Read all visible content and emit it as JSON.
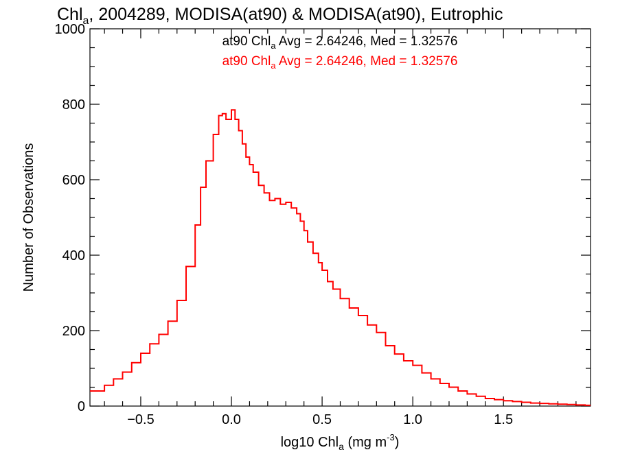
{
  "chart_data": {
    "type": "line",
    "title": {
      "pre": "Chl",
      "sub": "a",
      "post": ", 2004289, MODISA(at90) & MODISA(at90), Eutrophic"
    },
    "xlabel": {
      "pre": "log10 Chl",
      "sub": "a",
      "post": " (mg m",
      "sup": "-3",
      "end": ")"
    },
    "ylabel": "Number of Observations",
    "xlim": [
      -0.78,
      1.98
    ],
    "ylim": [
      0,
      1000
    ],
    "x_ticks": [
      -0.5,
      0.0,
      0.5,
      1.0,
      1.5
    ],
    "x_tick_labels": [
      "−0.5",
      "0.0",
      "0.5",
      "1.0",
      "1.5"
    ],
    "y_ticks": [
      0,
      200,
      400,
      600,
      800,
      1000
    ],
    "y_tick_labels": [
      "0",
      "200",
      "400",
      "600",
      "800",
      "1000"
    ],
    "grid": false,
    "legend": "none",
    "annotations": [
      {
        "pre": "at90 Chl",
        "sub": "a",
        "post": " Avg = 2.64246, Med = 1.32576",
        "color": "#000000"
      },
      {
        "pre": "at90 Chl",
        "sub": "a",
        "post": " Avg = 2.64246, Med = 1.32576",
        "color": "#ff0000"
      }
    ],
    "series": [
      {
        "color": "#ff0000",
        "style": "step",
        "points": [
          [
            -0.78,
            40
          ],
          [
            -0.7,
            55
          ],
          [
            -0.65,
            72
          ],
          [
            -0.6,
            90
          ],
          [
            -0.55,
            115
          ],
          [
            -0.5,
            140
          ],
          [
            -0.45,
            165
          ],
          [
            -0.4,
            190
          ],
          [
            -0.35,
            225
          ],
          [
            -0.3,
            280
          ],
          [
            -0.25,
            370
          ],
          [
            -0.2,
            480
          ],
          [
            -0.17,
            580
          ],
          [
            -0.14,
            650
          ],
          [
            -0.1,
            720
          ],
          [
            -0.07,
            770
          ],
          [
            -0.05,
            775
          ],
          [
            -0.03,
            760
          ],
          [
            0.0,
            785
          ],
          [
            0.02,
            760
          ],
          [
            0.04,
            730
          ],
          [
            0.06,
            695
          ],
          [
            0.08,
            660
          ],
          [
            0.1,
            640
          ],
          [
            0.12,
            620
          ],
          [
            0.15,
            585
          ],
          [
            0.18,
            565
          ],
          [
            0.21,
            545
          ],
          [
            0.24,
            550
          ],
          [
            0.27,
            535
          ],
          [
            0.3,
            540
          ],
          [
            0.33,
            525
          ],
          [
            0.36,
            510
          ],
          [
            0.38,
            490
          ],
          [
            0.4,
            465
          ],
          [
            0.42,
            435
          ],
          [
            0.45,
            405
          ],
          [
            0.48,
            380
          ],
          [
            0.5,
            360
          ],
          [
            0.53,
            330
          ],
          [
            0.56,
            310
          ],
          [
            0.6,
            285
          ],
          [
            0.65,
            260
          ],
          [
            0.7,
            240
          ],
          [
            0.75,
            215
          ],
          [
            0.8,
            195
          ],
          [
            0.85,
            160
          ],
          [
            0.9,
            138
          ],
          [
            0.95,
            120
          ],
          [
            1.0,
            108
          ],
          [
            1.05,
            88
          ],
          [
            1.1,
            72
          ],
          [
            1.15,
            60
          ],
          [
            1.2,
            50
          ],
          [
            1.25,
            40
          ],
          [
            1.3,
            32
          ],
          [
            1.35,
            26
          ],
          [
            1.4,
            20
          ],
          [
            1.45,
            17
          ],
          [
            1.5,
            14
          ],
          [
            1.55,
            12
          ],
          [
            1.6,
            10
          ],
          [
            1.65,
            8
          ],
          [
            1.7,
            7
          ],
          [
            1.75,
            6
          ],
          [
            1.8,
            5
          ],
          [
            1.85,
            4
          ],
          [
            1.9,
            3
          ],
          [
            1.95,
            2
          ],
          [
            1.98,
            2
          ]
        ]
      }
    ]
  }
}
